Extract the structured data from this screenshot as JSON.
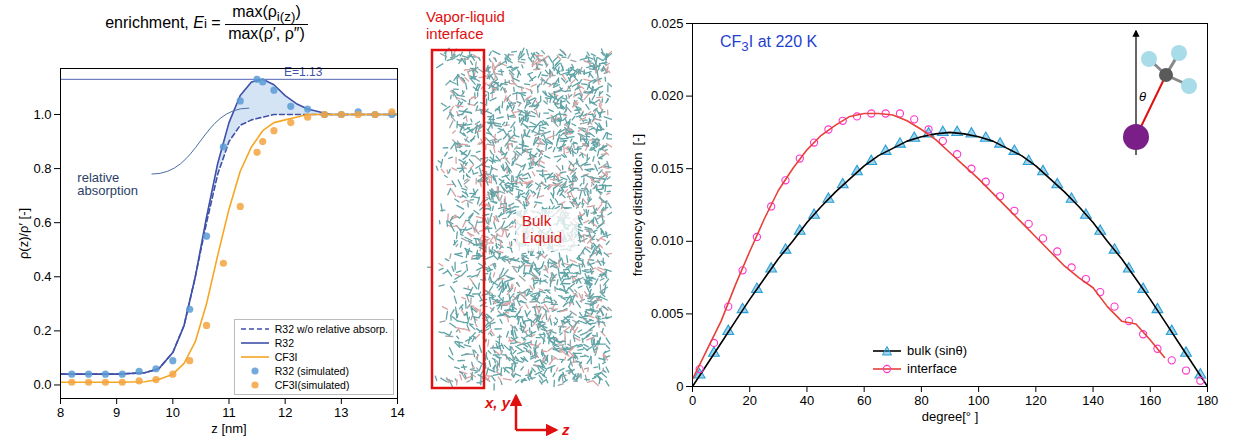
{
  "chart_data": [
    {
      "type": "line",
      "title": "enrichment,",
      "formula": {
        "symbol": "E",
        "subscript": "i",
        "numerator": "max(ρ",
        "numerator_subscript": "i(z)",
        "numerator_end": ")",
        "denominator": "max(ρ′, ρ″)"
      },
      "xlabel": "z [nm]",
      "ylabel": "ρ(z)/ρ′ [-]",
      "xlim": [
        8,
        14
      ],
      "xticks": [
        8,
        9,
        10,
        11,
        12,
        13,
        14
      ],
      "ylim": [
        -0.05,
        1.17
      ],
      "yticks": [
        {
          "value": 0,
          "label": "0.0"
        },
        0.2,
        0.4,
        0.6,
        0.8,
        {
          "value": 1,
          "label": "1.0"
        }
      ],
      "grid": false,
      "legend": "lower right",
      "annotations": [
        {
          "text": "E=1.13",
          "y": 1.13
        },
        {
          "text": "relative absorption"
        }
      ],
      "series": [
        {
          "name": "R32 w/o relative absorp.",
          "type": "line",
          "color": "#3f51a8",
          "line_style": "dashed",
          "x": [
            8,
            8.5,
            9,
            9.5,
            9.75,
            10,
            10.2,
            10.4,
            10.6,
            10.8,
            11,
            11.2,
            11.4,
            11.6,
            11.8,
            12,
            12.2,
            12.4,
            12.6,
            12.8,
            13,
            13.5,
            14
          ],
          "values": [
            0.04,
            0.04,
            0.04,
            0.045,
            0.06,
            0.12,
            0.22,
            0.4,
            0.6,
            0.78,
            0.9,
            0.96,
            0.98,
            0.99,
            1,
            1,
            1,
            1,
            1,
            1,
            1,
            1,
            1
          ]
        },
        {
          "name": "R32",
          "type": "line",
          "color": "#3f51a8",
          "line_style": "solid",
          "x": [
            8,
            8.5,
            9,
            9.5,
            9.75,
            10,
            10.2,
            10.4,
            10.6,
            10.8,
            11,
            11.2,
            11.4,
            11.6,
            11.8,
            12,
            12.2,
            12.4,
            12.6,
            12.8,
            13,
            13.5,
            14
          ],
          "values": [
            0.04,
            0.04,
            0.04,
            0.045,
            0.06,
            0.12,
            0.22,
            0.4,
            0.62,
            0.82,
            0.97,
            1.07,
            1.12,
            1.13,
            1.11,
            1.07,
            1.04,
            1.02,
            1.01,
            1,
            1,
            1,
            1
          ]
        },
        {
          "name": "CF3I",
          "type": "line",
          "color": "#f5a623",
          "line_style": "solid",
          "x": [
            8,
            8.5,
            9,
            9.5,
            9.75,
            10,
            10.2,
            10.4,
            10.6,
            10.8,
            11,
            11.2,
            11.4,
            11.6,
            11.8,
            12,
            12.2,
            12.4,
            12.6,
            12.8,
            13,
            13.5,
            14
          ],
          "values": [
            0.01,
            0.01,
            0.01,
            0.012,
            0.02,
            0.04,
            0.08,
            0.16,
            0.3,
            0.48,
            0.65,
            0.79,
            0.88,
            0.94,
            0.97,
            0.98,
            0.99,
            1,
            1,
            1,
            1,
            1,
            1
          ]
        },
        {
          "name": "R32 (simulated)",
          "type": "scatter",
          "color": "#5b9bd5",
          "marker": "circle",
          "x": [
            8.2,
            8.5,
            8.8,
            9.1,
            9.4,
            9.7,
            10,
            10.3,
            10.6,
            10.9,
            11.2,
            11.5,
            11.6,
            11.8,
            12.1,
            12.4,
            12.7,
            13,
            13.3,
            13.6,
            13.9
          ],
          "values": [
            0.04,
            0.04,
            0.04,
            0.04,
            0.05,
            0.06,
            0.09,
            0.28,
            0.55,
            0.88,
            1.05,
            1.13,
            1.12,
            1.09,
            1.03,
            1.02,
            1,
            1,
            1.01,
            1,
            1
          ]
        },
        {
          "name": "CF3I(simulated)",
          "type": "scatter",
          "color": "#f4a340",
          "marker": "circle",
          "x": [
            8.2,
            8.5,
            8.8,
            9.1,
            9.4,
            9.7,
            10,
            10.3,
            10.6,
            10.9,
            11.2,
            11.5,
            11.6,
            11.8,
            12.1,
            12.4,
            12.7,
            13,
            13.3,
            13.6,
            13.9
          ],
          "values": [
            0.01,
            0.01,
            0.01,
            0.01,
            0.015,
            0.02,
            0.04,
            0.09,
            0.22,
            0.45,
            0.66,
            0.86,
            0.9,
            0.94,
            0.97,
            0.99,
            1,
            1,
            1,
            1,
            1.01
          ]
        }
      ]
    },
    {
      "type": "line",
      "title": "CF3I at 220 K",
      "xlabel": "degree[° ]",
      "ylabel": "frequency distribution  [-]",
      "xlim": [
        0,
        180
      ],
      "xticks": [
        0,
        20,
        40,
        60,
        80,
        100,
        120,
        140,
        160,
        180
      ],
      "ylim": [
        0,
        0.025
      ],
      "yticks": [
        0,
        0.005,
        {
          "value": 0.01,
          "label": "0.010"
        },
        0.015,
        {
          "value": 0.02,
          "label": "0.020"
        },
        0.025
      ],
      "grid": false,
      "legend": "lower center",
      "inset": {
        "label": "θ"
      },
      "series": [
        {
          "name": "bulk (sinθ)",
          "type": "scatter",
          "color": "#2a9fd6",
          "marker": "triangle",
          "x": [
            2.5,
            7.5,
            12.5,
            17.5,
            22.5,
            27.5,
            32.5,
            37.5,
            42.5,
            47.5,
            52.5,
            57.5,
            62.5,
            67.5,
            72.5,
            77.5,
            82.5,
            87.5,
            92.5,
            97.5,
            102.5,
            107.5,
            112.5,
            117.5,
            122.5,
            127.5,
            132.5,
            137.5,
            142.5,
            147.5,
            152.5,
            157.5,
            162.5,
            167.5,
            172.5,
            177.5
          ],
          "values": [
            0.0008,
            0.0023,
            0.0038,
            0.0053,
            0.0067,
            0.0081,
            0.0094,
            0.0107,
            0.0118,
            0.0129,
            0.0139,
            0.0148,
            0.0155,
            0.0162,
            0.0167,
            0.0171,
            0.0174,
            0.0175,
            0.0175,
            0.0174,
            0.0171,
            0.0167,
            0.0162,
            0.0155,
            0.0148,
            0.0139,
            0.0129,
            0.0118,
            0.0107,
            0.0094,
            0.0081,
            0.0067,
            0.0053,
            0.0038,
            0.0023,
            0.0008
          ]
        },
        {
          "name": "bulk (sinθ)",
          "type": "line",
          "color": "#000000",
          "line_style": "solid",
          "x": [
            0,
            5,
            10,
            15,
            20,
            25,
            30,
            35,
            40,
            45,
            50,
            55,
            60,
            65,
            70,
            75,
            80,
            85,
            90,
            95,
            100,
            105,
            110,
            115,
            120,
            125,
            130,
            135,
            140,
            145,
            150,
            155,
            160,
            165,
            170,
            175,
            180
          ],
          "values": [
            0,
            0.0015,
            0.003,
            0.0045,
            0.006,
            0.0074,
            0.0088,
            0.01,
            0.0113,
            0.0124,
            0.0134,
            0.0143,
            0.0152,
            0.0159,
            0.0164,
            0.0169,
            0.0172,
            0.0174,
            0.0175,
            0.0174,
            0.0172,
            0.0169,
            0.0164,
            0.0159,
            0.0152,
            0.0143,
            0.0134,
            0.0124,
            0.0113,
            0.01,
            0.0088,
            0.0074,
            0.006,
            0.0045,
            0.003,
            0.0015,
            0
          ]
        },
        {
          "name": "interface",
          "type": "scatter",
          "color": "#ff33cc",
          "marker": "open_circle",
          "x": [
            2.5,
            7.5,
            12.5,
            17.5,
            22.5,
            27.5,
            32.5,
            37.5,
            42.5,
            47.5,
            52.5,
            57.5,
            62.5,
            67.5,
            72.5,
            77.5,
            82.5,
            87.5,
            92.5,
            97.5,
            102.5,
            107.5,
            112.5,
            117.5,
            122.5,
            127.5,
            132.5,
            137.5,
            142.5,
            147.5,
            152.5,
            157.5,
            162.5,
            167.5,
            172.5,
            177.5
          ],
          "values": [
            0.0012,
            0.003,
            0.0055,
            0.008,
            0.0103,
            0.0124,
            0.0142,
            0.0157,
            0.0168,
            0.0177,
            0.0183,
            0.0186,
            0.0188,
            0.0188,
            0.0188,
            0.0184,
            0.0177,
            0.0169,
            0.016,
            0.015,
            0.0141,
            0.0131,
            0.0121,
            0.0112,
            0.0102,
            0.0093,
            0.0082,
            0.0074,
            0.0065,
            0.0055,
            0.0045,
            0.0036,
            0.0026,
            0.0018,
            0.0011,
            0.0004
          ]
        },
        {
          "name": "interface",
          "type": "line",
          "color": "#e8403a",
          "line_style": "solid",
          "x": [
            0,
            5,
            10,
            15,
            20,
            25,
            30,
            35,
            40,
            45,
            50,
            55,
            60,
            65,
            70,
            75,
            80,
            85,
            90,
            95,
            100,
            105,
            110,
            115,
            120,
            125,
            130,
            135,
            140,
            145,
            150,
            155,
            160,
            165
          ],
          "values": [
            0.0005,
            0.0025,
            0.0045,
            0.007,
            0.0093,
            0.0115,
            0.0135,
            0.015,
            0.0163,
            0.0173,
            0.018,
            0.0186,
            0.0188,
            0.0188,
            0.0187,
            0.0183,
            0.0177,
            0.017,
            0.0161,
            0.0152,
            0.0143,
            0.0133,
            0.0123,
            0.0113,
            0.0103,
            0.0093,
            0.0083,
            0.0075,
            0.0068,
            0.0055,
            0.0045,
            0.0043,
            0.0032,
            0.002
          ]
        }
      ]
    }
  ],
  "snapshot": {
    "interface_label": "Vapor-liquid interface",
    "bulk_label": "Bulk Liquid",
    "axis_xy": "x, y",
    "axis_z": "z"
  }
}
